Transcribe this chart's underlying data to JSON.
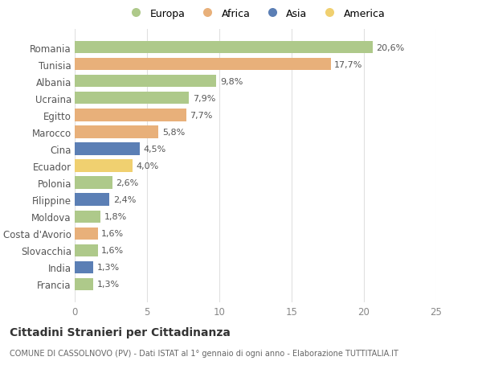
{
  "categories": [
    "Francia",
    "India",
    "Slovacchia",
    "Costa d'Avorio",
    "Moldova",
    "Filippine",
    "Polonia",
    "Ecuador",
    "Cina",
    "Marocco",
    "Egitto",
    "Ucraina",
    "Albania",
    "Tunisia",
    "Romania"
  ],
  "values": [
    1.3,
    1.3,
    1.6,
    1.6,
    1.8,
    2.4,
    2.6,
    4.0,
    4.5,
    5.8,
    7.7,
    7.9,
    9.8,
    17.7,
    20.6
  ],
  "labels": [
    "1,3%",
    "1,3%",
    "1,6%",
    "1,6%",
    "1,8%",
    "2,4%",
    "2,6%",
    "4,0%",
    "4,5%",
    "5,8%",
    "7,7%",
    "7,9%",
    "9,8%",
    "17,7%",
    "20,6%"
  ],
  "colors": [
    "#aec98a",
    "#5b7fb5",
    "#aec98a",
    "#e8b07a",
    "#aec98a",
    "#5b7fb5",
    "#aec98a",
    "#f0d070",
    "#5b7fb5",
    "#e8b07a",
    "#e8b07a",
    "#aec98a",
    "#aec98a",
    "#e8b07a",
    "#aec98a"
  ],
  "legend_labels": [
    "Europa",
    "Africa",
    "Asia",
    "America"
  ],
  "legend_colors": [
    "#aec98a",
    "#e8b07a",
    "#5b7fb5",
    "#f0d070"
  ],
  "title": "Cittadini Stranieri per Cittadinanza",
  "subtitle": "COMUNE DI CASSOLNOVO (PV) - Dati ISTAT al 1° gennaio di ogni anno - Elaborazione TUTTITALIA.IT",
  "xlim": [
    0,
    25
  ],
  "xticks": [
    0,
    5,
    10,
    15,
    20,
    25
  ],
  "background_color": "#ffffff",
  "grid_color": "#e0e0e0",
  "bar_height": 0.72,
  "label_fontsize": 8,
  "tick_fontsize": 8.5,
  "label_color": "#555555",
  "tick_color": "#888888"
}
